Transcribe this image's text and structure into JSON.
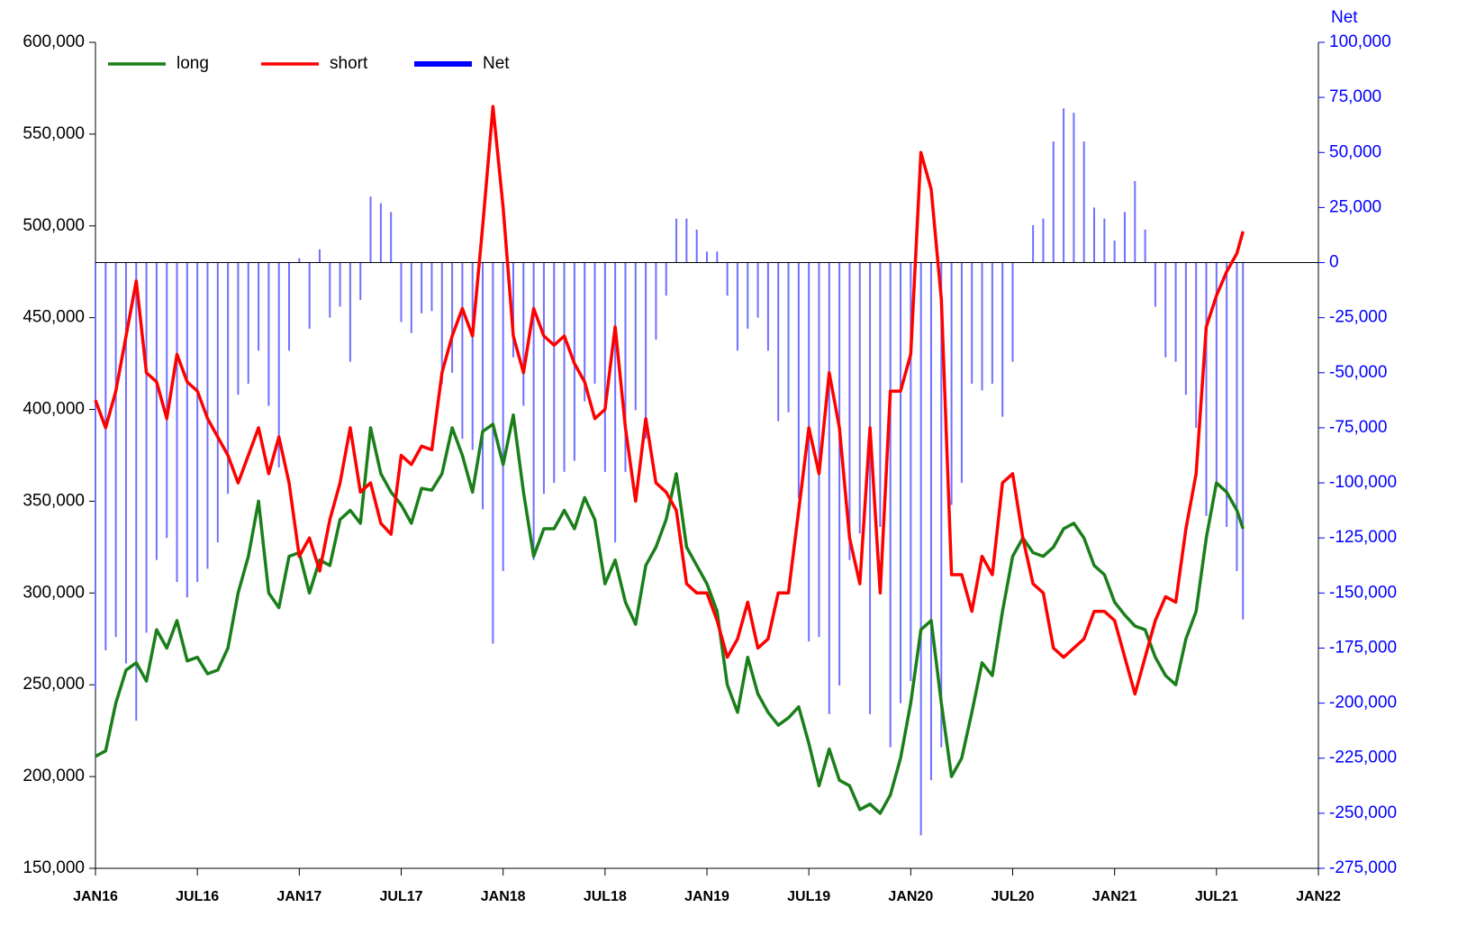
{
  "chart_data": {
    "type": "line",
    "y2_label": "Net",
    "x": [
      2016.0,
      2016.05,
      2016.1,
      2016.15,
      2016.2,
      2016.25,
      2016.3,
      2016.35,
      2016.4,
      2016.45,
      2016.5,
      2016.55,
      2016.6,
      2016.65,
      2016.7,
      2016.75,
      2016.8,
      2016.85,
      2016.9,
      2016.95,
      2017.0,
      2017.05,
      2017.1,
      2017.15,
      2017.2,
      2017.25,
      2017.3,
      2017.35,
      2017.4,
      2017.45,
      2017.5,
      2017.55,
      2017.6,
      2017.65,
      2017.7,
      2017.75,
      2017.8,
      2017.85,
      2017.9,
      2017.95,
      2018.0,
      2018.05,
      2018.1,
      2018.15,
      2018.2,
      2018.25,
      2018.3,
      2018.35,
      2018.4,
      2018.45,
      2018.5,
      2018.55,
      2018.6,
      2018.65,
      2018.7,
      2018.75,
      2018.8,
      2018.85,
      2018.9,
      2018.95,
      2019.0,
      2019.05,
      2019.1,
      2019.15,
      2019.2,
      2019.25,
      2019.3,
      2019.35,
      2019.4,
      2019.45,
      2019.5,
      2019.55,
      2019.6,
      2019.65,
      2019.7,
      2019.75,
      2019.8,
      2019.85,
      2019.9,
      2019.95,
      2020.0,
      2020.05,
      2020.1,
      2020.15,
      2020.2,
      2020.25,
      2020.3,
      2020.35,
      2020.4,
      2020.45,
      2020.5,
      2020.55,
      2020.6,
      2020.65,
      2020.7,
      2020.75,
      2020.8,
      2020.85,
      2020.9,
      2020.95,
      2021.0,
      2021.05,
      2021.1,
      2021.15,
      2021.2,
      2021.25,
      2021.3,
      2021.35,
      2021.4,
      2021.45,
      2021.5,
      2021.55,
      2021.6,
      2021.63
    ],
    "series": [
      {
        "name": "Net",
        "type": "bar",
        "axis": "y2",
        "color": "#7070ff",
        "legend_color": "#0000ff",
        "values": [
          -194000,
          -176000,
          -170000,
          -182000,
          -208000,
          -168000,
          -135000,
          -125000,
          -145000,
          -152000,
          -145000,
          -139000,
          -127000,
          -105000,
          -60000,
          -55000,
          -40000,
          -65000,
          -93000,
          -40000,
          2000,
          -30000,
          6000,
          -25000,
          -20000,
          -45000,
          -17000,
          30000,
          27000,
          23000,
          -27000,
          -32000,
          -23000,
          -22000,
          -55000,
          -50000,
          -80000,
          -85000,
          -112000,
          -173000,
          -140000,
          -43000,
          -65000,
          -135000,
          -105000,
          -100000,
          -95000,
          -90000,
          -63000,
          -55000,
          -95000,
          -127000,
          -95000,
          -67000,
          -80000,
          -35000,
          -15000,
          20000,
          20000,
          15000,
          5000,
          5000,
          -15000,
          -40000,
          -30000,
          -25000,
          -40000,
          -72000,
          -68000,
          -107000,
          -172000,
          -170000,
          -205000,
          -192000,
          -135000,
          -123000,
          -205000,
          -120000,
          -220000,
          -200000,
          -190000,
          -260000,
          -235000,
          -220000,
          -110000,
          -100000,
          -55000,
          -58000,
          -55000,
          -70000,
          -45000,
          0,
          17000,
          20000,
          55000,
          70000,
          68000,
          55000,
          25000,
          20000,
          10000,
          23000,
          37000,
          15000,
          -20000,
          -43000,
          -45000,
          -60000,
          -75000,
          -115000,
          -102000,
          -120000,
          -140000,
          -162000
        ]
      },
      {
        "name": "long",
        "type": "line",
        "color": "#1a7f1a",
        "values": [
          211000,
          214000,
          240000,
          258000,
          262000,
          252000,
          280000,
          270000,
          285000,
          263000,
          265000,
          256000,
          258000,
          270000,
          300000,
          320000,
          350000,
          300000,
          292000,
          320000,
          322000,
          300000,
          318000,
          315000,
          340000,
          345000,
          338000,
          390000,
          365000,
          355000,
          348000,
          338000,
          357000,
          356000,
          365000,
          390000,
          375000,
          355000,
          388000,
          392000,
          370000,
          397000,
          355000,
          320000,
          335000,
          335000,
          345000,
          335000,
          352000,
          340000,
          305000,
          318000,
          295000,
          283000,
          315000,
          325000,
          340000,
          365000,
          325000,
          315000,
          305000,
          290000,
          250000,
          235000,
          265000,
          245000,
          235000,
          228000,
          232000,
          238000,
          218000,
          195000,
          215000,
          198000,
          195000,
          182000,
          185000,
          180000,
          190000,
          210000,
          240000,
          280000,
          285000,
          240000,
          200000,
          210000,
          235000,
          262000,
          255000,
          290000,
          320000,
          330000,
          322000,
          320000,
          325000,
          335000,
          338000,
          330000,
          315000,
          310000,
          295000,
          288000,
          282000,
          280000,
          265000,
          255000,
          250000,
          275000,
          290000,
          330000,
          360000,
          355000,
          345000,
          335000
        ]
      },
      {
        "name": "short",
        "type": "line",
        "color": "#ff0000",
        "values": [
          405000,
          390000,
          410000,
          440000,
          470000,
          420000,
          415000,
          395000,
          430000,
          415000,
          410000,
          395000,
          385000,
          375000,
          360000,
          375000,
          390000,
          365000,
          385000,
          360000,
          320000,
          330000,
          312000,
          340000,
          360000,
          390000,
          355000,
          360000,
          338000,
          332000,
          375000,
          370000,
          380000,
          378000,
          420000,
          440000,
          455000,
          440000,
          500000,
          565000,
          510000,
          440000,
          420000,
          455000,
          440000,
          435000,
          440000,
          425000,
          415000,
          395000,
          400000,
          445000,
          390000,
          350000,
          395000,
          360000,
          355000,
          345000,
          305000,
          300000,
          300000,
          285000,
          265000,
          275000,
          295000,
          270000,
          275000,
          300000,
          300000,
          345000,
          390000,
          365000,
          420000,
          390000,
          330000,
          305000,
          390000,
          300000,
          410000,
          410000,
          430000,
          540000,
          520000,
          460000,
          310000,
          310000,
          290000,
          320000,
          310000,
          360000,
          365000,
          330000,
          305000,
          300000,
          270000,
          265000,
          270000,
          275000,
          290000,
          290000,
          285000,
          265000,
          245000,
          265000,
          285000,
          298000,
          295000,
          335000,
          365000,
          445000,
          462000,
          475000,
          485000,
          497000
        ]
      }
    ],
    "xlim": [
      2016,
      2022
    ],
    "xticks": [
      {
        "value": 2016,
        "label": "JAN16"
      },
      {
        "value": 2016.5,
        "label": "JUL16"
      },
      {
        "value": 2017,
        "label": "JAN17"
      },
      {
        "value": 2017.5,
        "label": "JUL17"
      },
      {
        "value": 2018,
        "label": "JAN18"
      },
      {
        "value": 2018.5,
        "label": "JUL18"
      },
      {
        "value": 2019,
        "label": "JAN19"
      },
      {
        "value": 2019.5,
        "label": "JUL19"
      },
      {
        "value": 2020,
        "label": "JAN20"
      },
      {
        "value": 2020.5,
        "label": "JUL20"
      },
      {
        "value": 2021,
        "label": "JAN21"
      },
      {
        "value": 2021.5,
        "label": "JUL21"
      },
      {
        "value": 2022,
        "label": "JAN22"
      }
    ],
    "ylim": [
      150000,
      600000
    ],
    "yticks": [
      {
        "value": 150000,
        "label": "150,000"
      },
      {
        "value": 200000,
        "label": "200,000"
      },
      {
        "value": 250000,
        "label": "250,000"
      },
      {
        "value": 300000,
        "label": "300,000"
      },
      {
        "value": 350000,
        "label": "350,000"
      },
      {
        "value": 400000,
        "label": "400,000"
      },
      {
        "value": 450000,
        "label": "450,000"
      },
      {
        "value": 500000,
        "label": "500,000"
      },
      {
        "value": 550000,
        "label": "550,000"
      },
      {
        "value": 600000,
        "label": "600,000"
      }
    ],
    "y2lim": [
      -275000,
      100000
    ],
    "y2ticks": [
      {
        "value": -275000,
        "label": "-275,000"
      },
      {
        "value": -250000,
        "label": "-250,000"
      },
      {
        "value": -225000,
        "label": "-225,000"
      },
      {
        "value": -200000,
        "label": "-200,000"
      },
      {
        "value": -175000,
        "label": "-175,000"
      },
      {
        "value": -150000,
        "label": "-150,000"
      },
      {
        "value": -125000,
        "label": "-125,000"
      },
      {
        "value": -100000,
        "label": "-100,000"
      },
      {
        "value": -75000,
        "label": "-75,000"
      },
      {
        "value": -50000,
        "label": "-50,000"
      },
      {
        "value": -25000,
        "label": "-25,000"
      },
      0,
      {
        "value": 25000,
        "label": "25,000"
      },
      {
        "value": 50000,
        "label": "50,000"
      },
      {
        "value": 75000,
        "label": "75,000"
      },
      {
        "value": 100000,
        "label": "100,000"
      }
    ],
    "legend": "top-left"
  }
}
